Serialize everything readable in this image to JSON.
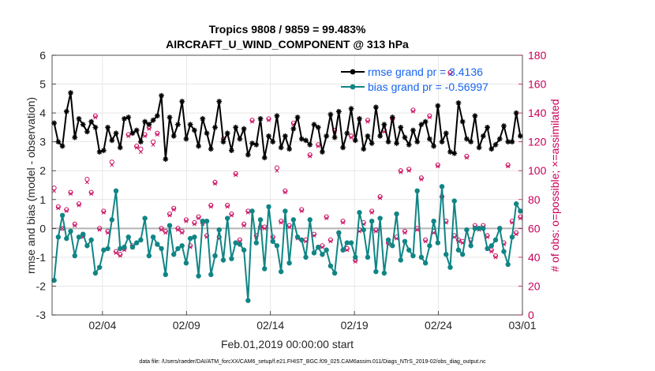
{
  "colors": {
    "rmse": "#000000",
    "bias": "#108585",
    "obs": "#c8005a",
    "legend_text": "#1464f0",
    "grid": "#d9d9d9",
    "zero_line": "#b4b4b4"
  },
  "chart_data": {
    "type": "line",
    "title": "Tropics 9808 / 9859 = 99.483%",
    "subtitle": "AIRCRAFT_U_WIND_COMPONENT @ 313 hPa",
    "xlabel": "Feb.01,2019 00:00:00 start",
    "ylabel": "rmse and bias (model - observation)",
    "y2label": "# of obs: o=possible; ×=assimilated",
    "footnote": "data file: /Users/raeder/DAI/ATM_forcXX/CAM6_setup/f.e21.FHIST_BGC.f09_025.CAM6assim.011/Diags_NTrS_2019-02/obs_diag_output.nc",
    "xlim": [
      0.5,
      28.5
    ],
    "x_ticks": [
      {
        "value": 3.5,
        "label": "02/04"
      },
      {
        "value": 8.5,
        "label": "02/09"
      },
      {
        "value": 13.5,
        "label": "02/14"
      },
      {
        "value": 18.5,
        "label": "02/19"
      },
      {
        "value": 23.5,
        "label": "02/24"
      },
      {
        "value": 28.5,
        "label": "03/01"
      }
    ],
    "ylim": [
      -3,
      6
    ],
    "y_ticks": [
      -3,
      -2,
      -1,
      0,
      1,
      2,
      3,
      4,
      5,
      6
    ],
    "y2lim": [
      0,
      180
    ],
    "y2_ticks": [
      0,
      20,
      40,
      60,
      80,
      100,
      120,
      140,
      160,
      180
    ],
    "legend_position": "top-right",
    "grid": true,
    "series": [
      {
        "name": "rmse grand pr = 3.4136",
        "values": [
          3.65,
          3.0,
          2.85,
          4.05,
          4.7,
          3.15,
          3.8,
          3.6,
          3.35,
          3.7,
          3.5,
          2.65,
          2.7,
          3.5,
          3.05,
          3.3,
          2.8,
          3.8,
          3.85,
          3.3,
          3.4,
          3.0,
          3.7,
          3.6,
          3.75,
          3.9,
          4.6,
          2.4,
          3.85,
          3.2,
          3.6,
          4.4,
          3.1,
          3.6,
          3.4,
          2.85,
          3.8,
          3.3,
          2.75,
          3.5,
          4.4,
          3.0,
          3.3,
          2.7,
          3.5,
          3.1,
          3.45,
          2.55,
          2.95,
          2.9,
          3.8,
          2.45,
          3.2,
          3.0,
          3.9,
          2.8,
          3.2,
          2.75,
          3.45,
          3.85,
          3.1,
          3.05,
          2.9,
          3.6,
          3.5,
          2.65,
          3.2,
          3.95,
          3.15,
          4.05,
          2.8,
          3.3,
          4.15,
          3.05,
          3.8,
          2.75,
          3.2,
          2.95,
          4.2,
          3.2,
          3.6,
          3.0,
          3.85,
          2.95,
          3.5,
          3.15,
          2.9,
          3.4,
          3.0,
          3.6,
          3.7,
          3.1,
          2.85,
          4.25,
          3.0,
          3.3,
          2.65,
          2.6,
          4.35,
          3.7,
          3.1,
          3.0,
          3.9,
          2.8,
          3.2,
          3.5,
          2.75,
          2.9,
          3.1,
          3.55,
          3.0,
          3.0,
          4.0,
          3.2
        ]
      },
      {
        "name": "bias grand pr = -0.56997",
        "values": [
          -1.8,
          -0.3,
          0.45,
          -0.35,
          -0.1,
          -0.95,
          -0.3,
          -0.2,
          -0.6,
          -0.4,
          -1.55,
          -1.35,
          -0.75,
          -0.7,
          0.3,
          1.3,
          -0.7,
          -0.65,
          -0.3,
          -0.65,
          -0.5,
          -0.4,
          0.35,
          -0.95,
          -0.3,
          -0.55,
          -0.7,
          -1.6,
          0.1,
          -0.9,
          -0.7,
          -0.6,
          -1.2,
          -0.35,
          -0.3,
          -1.65,
          0.25,
          0.25,
          -1.6,
          -0.95,
          -0.05,
          -1.1,
          0.35,
          -1.05,
          -0.5,
          -0.55,
          -0.75,
          -2.5,
          0.6,
          -0.5,
          0.3,
          -1.4,
          0.75,
          -0.45,
          -0.6,
          -1.5,
          0.6,
          -1.2,
          0.3,
          -0.3,
          -0.4,
          -1.0,
          0.3,
          -0.85,
          -0.65,
          -0.9,
          -0.75,
          -1.3,
          -1.55,
          -0.15,
          -0.75,
          -0.5,
          -0.5,
          -1.0,
          0.55,
          -0.05,
          -1.0,
          0.25,
          -1.5,
          0.35,
          -1.55,
          -0.4,
          -0.6,
          0.5,
          -1.1,
          -0.45,
          -0.75,
          -0.95,
          1.3,
          -1.0,
          -1.2,
          -0.6,
          0.25,
          -0.5,
          1.45,
          -0.9,
          -1.35,
          0.95,
          -0.75,
          -0.9,
          -0.05,
          -0.6,
          0.0,
          0.0,
          0.0,
          -0.7,
          -0.6,
          -0.4,
          0.0,
          -0.8,
          -1.25,
          -0.3,
          0.85,
          0.6
        ]
      },
      {
        "name": "obs possible",
        "axis": "right",
        "values": [
          88,
          75,
          60,
          73,
          85,
          63,
          77,
          55,
          94,
          85,
          138,
          60,
          72,
          58,
          106,
          44,
          42,
          46,
          125,
          48,
          117,
          115,
          125,
          130,
          120,
          126,
          60,
          58,
          70,
          74,
          60,
          58,
          66,
          48,
          64,
          68,
          64,
          55,
          76,
          92,
          54,
          122,
          76,
          70,
          98,
          52,
          63,
          72,
          135,
          55,
          61,
          61,
          136,
          54,
          102,
          65,
          86,
          62,
          133,
          54,
          73,
          52,
          111,
          56,
          118,
          48,
          68,
          52,
          128,
          57,
          65,
          46,
          124,
          38,
          59,
          64,
          135,
          72,
          59,
          82,
          128,
          50,
          136,
          54,
          100,
          58,
          101,
          142,
          60,
          95,
          52,
          138,
          58,
          104,
          82,
          65,
          168,
          55,
          52,
          51,
          110,
          52,
          62,
          60,
          62,
          55,
          45,
          41,
          60,
          50,
          104,
          65,
          57,
          68
        ]
      },
      {
        "name": "obs assimilated",
        "axis": "right",
        "values": [
          86,
          74,
          60,
          72,
          84,
          62,
          76,
          54,
          92,
          84,
          137,
          59,
          71,
          57,
          104,
          43,
          41,
          45,
          124,
          47,
          116,
          113,
          124,
          129,
          118,
          125,
          59,
          57,
          69,
          73,
          59,
          57,
          65,
          47,
          63,
          67,
          63,
          54,
          75,
          91,
          53,
          121,
          75,
          69,
          97,
          51,
          62,
          71,
          134,
          54,
          60,
          60,
          135,
          53,
          100,
          64,
          85,
          61,
          132,
          53,
          72,
          51,
          110,
          55,
          117,
          47,
          67,
          51,
          127,
          56,
          64,
          45,
          123,
          37,
          58,
          63,
          134,
          71,
          58,
          81,
          127,
          49,
          135,
          53,
          99,
          57,
          100,
          141,
          59,
          94,
          51,
          137,
          57,
          103,
          81,
          64,
          167,
          54,
          51,
          50,
          109,
          51,
          61,
          59,
          61,
          54,
          44,
          40,
          59,
          49,
          103,
          64,
          56,
          67
        ]
      }
    ]
  }
}
